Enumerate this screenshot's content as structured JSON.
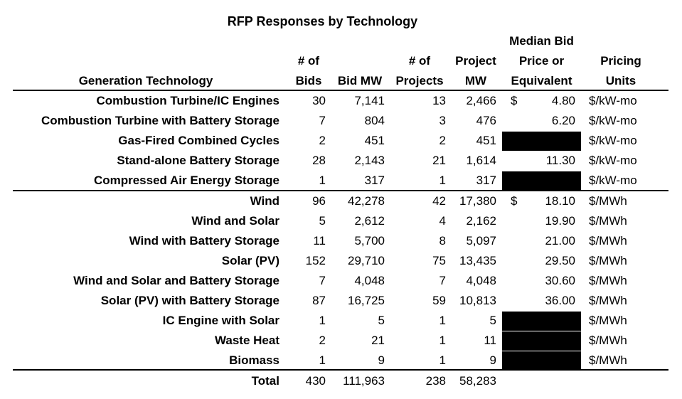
{
  "title": "RFP Responses by Technology",
  "headers": {
    "technology": "Generation Technology",
    "bids_l1": "# of",
    "bids_l2": "Bids",
    "bid_mw": "Bid MW",
    "projects_l1": "# of",
    "projects_l2": "Projects",
    "project_mw_l1": "Project",
    "project_mw_l2": "MW",
    "price_l1": "Median Bid",
    "price_l2": "Price or",
    "price_l3": "Equivalent",
    "units_l1": "Pricing",
    "units_l2": "Units"
  },
  "rows": [
    {
      "tech": "Combustion Turbine/IC Engines",
      "bids": "30",
      "bid_mw": "7,141",
      "projects": "13",
      "project_mw": "2,466",
      "currency": "$",
      "price": "4.80",
      "units": "$/kW-mo"
    },
    {
      "tech": "Combustion Turbine with Battery Storage",
      "bids": "7",
      "bid_mw": "804",
      "projects": "3",
      "project_mw": "476",
      "currency": "",
      "price": "6.20",
      "units": "$/kW-mo"
    },
    {
      "tech": "Gas-Fired Combined Cycles",
      "bids": "2",
      "bid_mw": "451",
      "projects": "2",
      "project_mw": "451",
      "currency": "",
      "price": "",
      "units": "$/kW-mo"
    },
    {
      "tech": "Stand-alone Battery Storage",
      "bids": "28",
      "bid_mw": "2,143",
      "projects": "21",
      "project_mw": "1,614",
      "currency": "",
      "price": "11.30",
      "units": "$/kW-mo"
    },
    {
      "tech": "Compressed Air Energy Storage",
      "bids": "1",
      "bid_mw": "317",
      "projects": "1",
      "project_mw": "317",
      "currency": "",
      "price": "",
      "units": "$/kW-mo"
    },
    {
      "tech": "Wind",
      "bids": "96",
      "bid_mw": "42,278",
      "projects": "42",
      "project_mw": "17,380",
      "currency": "$",
      "price": "18.10",
      "units": "$/MWh"
    },
    {
      "tech": "Wind and Solar",
      "bids": "5",
      "bid_mw": "2,612",
      "projects": "4",
      "project_mw": "2,162",
      "currency": "",
      "price": "19.90",
      "units": "$/MWh"
    },
    {
      "tech": "Wind with Battery Storage",
      "bids": "11",
      "bid_mw": "5,700",
      "projects": "8",
      "project_mw": "5,097",
      "currency": "",
      "price": "21.00",
      "units": "$/MWh"
    },
    {
      "tech": "Solar (PV)",
      "bids": "152",
      "bid_mw": "29,710",
      "projects": "75",
      "project_mw": "13,435",
      "currency": "",
      "price": "29.50",
      "units": "$/MWh"
    },
    {
      "tech": "Wind and Solar and Battery Storage",
      "bids": "7",
      "bid_mw": "4,048",
      "projects": "7",
      "project_mw": "4,048",
      "currency": "",
      "price": "30.60",
      "units": "$/MWh"
    },
    {
      "tech": "Solar (PV) with Battery Storage",
      "bids": "87",
      "bid_mw": "16,725",
      "projects": "59",
      "project_mw": "10,813",
      "currency": "",
      "price": "36.00",
      "units": "$/MWh"
    },
    {
      "tech": "IC Engine with Solar",
      "bids": "1",
      "bid_mw": "5",
      "projects": "1",
      "project_mw": "5",
      "currency": "",
      "price": "",
      "units": "$/MWh"
    },
    {
      "tech": "Waste Heat",
      "bids": "2",
      "bid_mw": "21",
      "projects": "1",
      "project_mw": "11",
      "currency": "",
      "price": "",
      "units": "$/MWh"
    },
    {
      "tech": "Biomass",
      "bids": "1",
      "bid_mw": "9",
      "projects": "1",
      "project_mw": "9",
      "currency": "",
      "price": "",
      "units": "$/MWh"
    }
  ],
  "total": {
    "label": "Total",
    "bids": "430",
    "bid_mw": "111,963",
    "projects": "238",
    "project_mw": "58,283"
  }
}
